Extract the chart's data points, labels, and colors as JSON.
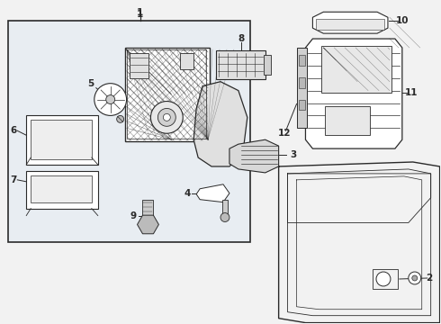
{
  "bg_color": "#f2f2f2",
  "box_bg": "#eaeef2",
  "white": "#ffffff",
  "line_color": "#2a2a2a",
  "gray_light": "#cccccc",
  "gray_mid": "#aaaaaa"
}
